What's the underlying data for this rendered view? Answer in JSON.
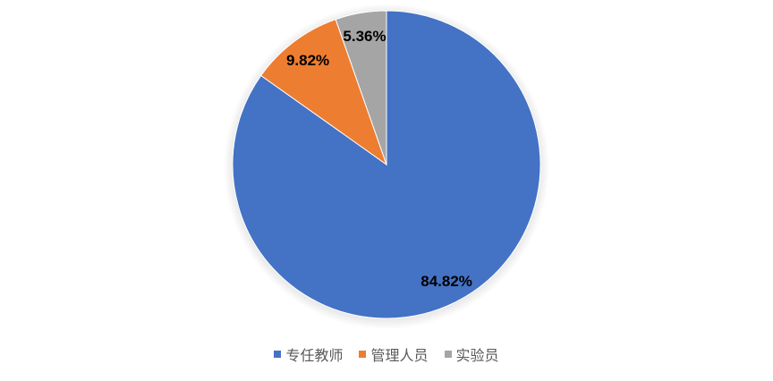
{
  "chart_data": {
    "type": "pie",
    "categories": [
      "专任教师",
      "管理人员",
      "实验员"
    ],
    "values": [
      84.82,
      9.82,
      5.36
    ],
    "data_labels": [
      "84.82%",
      "9.82%",
      "5.36%"
    ],
    "colors": [
      "#4472C4",
      "#ED7D31",
      "#A5A5A5"
    ],
    "start_angle": "top, clockwise",
    "legend_position": "bottom"
  }
}
